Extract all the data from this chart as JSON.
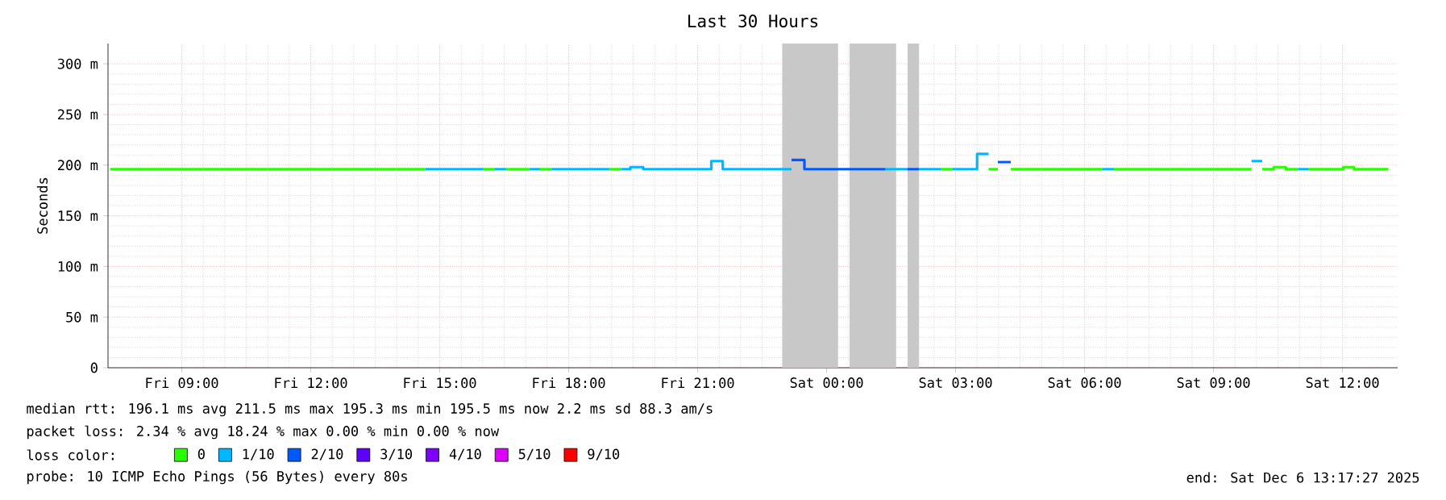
{
  "chart_data": {
    "type": "line",
    "title": "Last 30 Hours",
    "ylabel": "Seconds",
    "xlim": [
      "2025-12-05T07:17",
      "2025-12-06T13:17"
    ],
    "ylim": [
      0,
      320
    ],
    "xticks": [
      {
        "value": "2025-12-05T09:00",
        "label": "Fri 09:00"
      },
      {
        "value": "2025-12-05T12:00",
        "label": "Fri 12:00"
      },
      {
        "value": "2025-12-05T15:00",
        "label": "Fri 15:00"
      },
      {
        "value": "2025-12-05T18:00",
        "label": "Fri 18:00"
      },
      {
        "value": "2025-12-05T21:00",
        "label": "Fri 21:00"
      },
      {
        "value": "2025-12-06T00:00",
        "label": "Sat 00:00"
      },
      {
        "value": "2025-12-06T03:00",
        "label": "Sat 03:00"
      },
      {
        "value": "2025-12-06T06:00",
        "label": "Sat 06:00"
      },
      {
        "value": "2025-12-06T09:00",
        "label": "Sat 09:00"
      },
      {
        "value": "2025-12-06T12:00",
        "label": "Sat 12:00"
      }
    ],
    "yticks": [
      {
        "value": 0,
        "label": "0"
      },
      {
        "value": 50,
        "label": "50 m"
      },
      {
        "value": 100,
        "label": "100 m"
      },
      {
        "value": 150,
        "label": "150 m"
      },
      {
        "value": 200,
        "label": "200 m"
      },
      {
        "value": 250,
        "label": "250 m"
      },
      {
        "value": 300,
        "label": "300 m"
      }
    ],
    "grid": true,
    "legend": "bottom",
    "legend_title": "loss color:",
    "marker": "none",
    "line_style": "solid",
    "series": [
      {
        "name": "0",
        "color": "#26ff00",
        "x": [
          "2025-12-05T07:20",
          "2025-12-05T14:40",
          null,
          "2025-12-05T16:01",
          "2025-12-05T16:17",
          null,
          "2025-12-05T16:33",
          "2025-12-05T17:05",
          null,
          "2025-12-05T17:20",
          "2025-12-05T17:36",
          null,
          "2025-12-05T18:57",
          "2025-12-05T19:13",
          null,
          "2025-12-06T02:40",
          "2025-12-06T02:56",
          null,
          "2025-12-06T03:46",
          "2025-12-06T03:59",
          null,
          "2025-12-06T04:17",
          "2025-12-06T06:25",
          null,
          "2025-12-06T06:41",
          "2025-12-06T09:53",
          null,
          "2025-12-06T10:08",
          "2025-12-06T10:24",
          "2025-12-06T10:24",
          "2025-12-06T10:41",
          "2025-12-06T10:41",
          "2025-12-06T10:58",
          null,
          "2025-12-06T11:13",
          "2025-12-06T12:01",
          "2025-12-06T12:01",
          "2025-12-06T12:16",
          "2025-12-06T12:16",
          "2025-12-06T13:04"
        ],
        "values": [
          196,
          196,
          null,
          196,
          196,
          null,
          196,
          196,
          null,
          196,
          196,
          null,
          196,
          196,
          null,
          196,
          196,
          null,
          196,
          196,
          null,
          196,
          196,
          null,
          196,
          196,
          null,
          196,
          196,
          198,
          198,
          196,
          196,
          null,
          196,
          196,
          198,
          198,
          196,
          196
        ]
      },
      {
        "name": "1/10",
        "color": "#00b8ff",
        "x": [
          "2025-12-05T14:40",
          "2025-12-05T16:01",
          null,
          "2025-12-05T16:17",
          "2025-12-05T16:33",
          null,
          "2025-12-05T17:05",
          "2025-12-05T17:20",
          null,
          "2025-12-05T17:36",
          "2025-12-05T18:57",
          null,
          "2025-12-05T19:13",
          "2025-12-05T19:26",
          "2025-12-05T19:26",
          "2025-12-05T19:44",
          "2025-12-05T19:44",
          "2025-12-05T21:19",
          "2025-12-05T21:19",
          "2025-12-05T21:35",
          "2025-12-05T21:35",
          "2025-12-05T23:11",
          null,
          "2025-12-06T01:22",
          "2025-12-06T01:53",
          null,
          "2025-12-06T02:09",
          "2025-12-06T02:40",
          null,
          "2025-12-06T02:56",
          "2025-12-06T03:30",
          "2025-12-06T03:30",
          "2025-12-06T03:46",
          null,
          "2025-12-06T06:25",
          "2025-12-06T06:41",
          null,
          "2025-12-06T09:53",
          "2025-12-06T10:08",
          null,
          "2025-12-06T10:58",
          "2025-12-06T11:13"
        ],
        "values": [
          196,
          196,
          null,
          196,
          196,
          null,
          196,
          196,
          null,
          196,
          196,
          null,
          196,
          196,
          198,
          198,
          196,
          196,
          204,
          204,
          196,
          196,
          null,
          196,
          196,
          null,
          196,
          196,
          null,
          196,
          196,
          211,
          211,
          null,
          196,
          196,
          null,
          204,
          204,
          null,
          196,
          196
        ]
      },
      {
        "name": "2/10",
        "color": "#0059ff",
        "x": [
          "2025-12-05T23:11",
          "2025-12-05T23:29",
          "2025-12-05T23:29",
          "2025-12-06T01:22",
          null,
          "2025-12-06T01:53",
          "2025-12-06T02:09",
          null,
          "2025-12-06T03:59",
          "2025-12-06T04:17"
        ],
        "values": [
          205,
          205,
          196,
          196,
          null,
          196,
          196,
          null,
          203,
          203
        ]
      },
      {
        "name": "3/10",
        "color": "#5e00ff"
      },
      {
        "name": "4/10",
        "color": "#7e00ff"
      },
      {
        "name": "5/10",
        "color": "#dd00ff"
      },
      {
        "name": "9/10",
        "color": "#ff0000"
      }
    ],
    "bands": [
      {
        "axis": "x",
        "from": "2025-12-05T22:58",
        "to": "2025-12-06T00:16",
        "color": "#c8c8c8"
      },
      {
        "axis": "x",
        "from": "2025-12-06T00:32",
        "to": "2025-12-06T01:37",
        "color": "#c8c8c8"
      },
      {
        "axis": "x",
        "from": "2025-12-06T01:53",
        "to": "2025-12-06T02:09",
        "color": "#c8c8c8"
      }
    ],
    "annotations": [
      "median rtt: 196.1 ms avg 211.5 ms max 195.3 ms min 195.5 ms now 2.2 ms sd 88.3 am/s",
      "packet loss: 2.34 % avg 18.24 % max 0.00 % min 0.00 % now",
      "probe: 10 ICMP Echo Pings (56 Bytes) every 80s",
      "end: Sat Dec 6 13:17:27 2025"
    ]
  }
}
